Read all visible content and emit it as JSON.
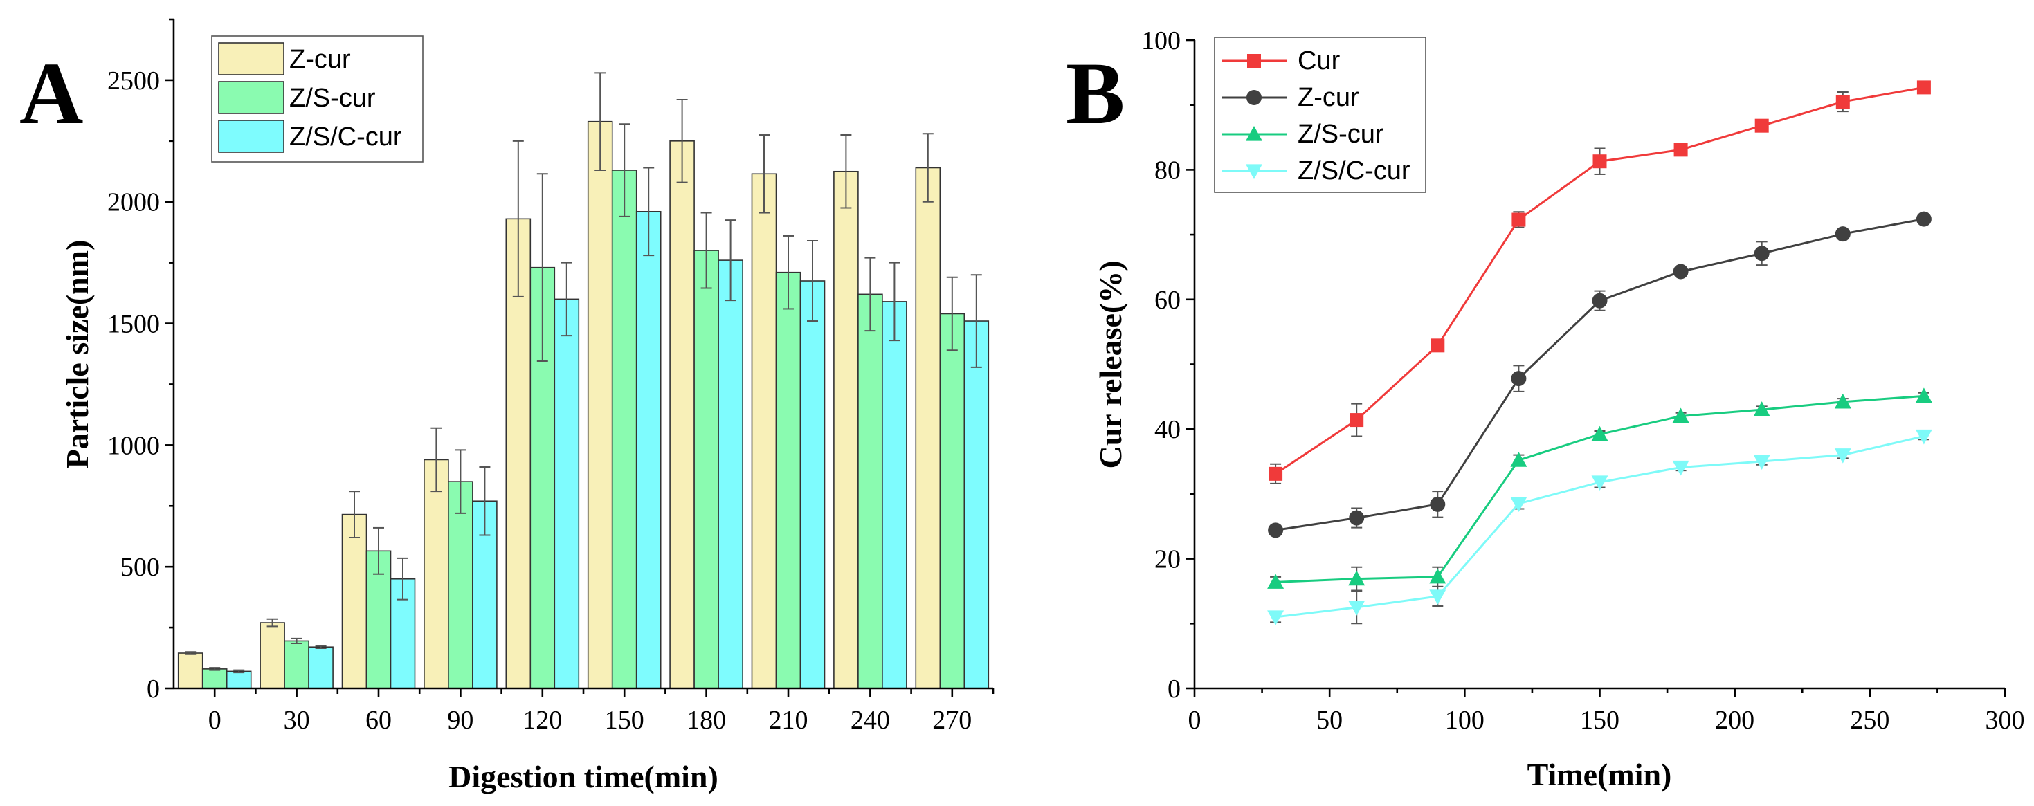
{
  "chart_data": [
    {
      "panel": "A",
      "type": "bar",
      "xlabel": "Digestion time(min)",
      "ylabel": "Particle size(nm)",
      "categories": [
        "0",
        "30",
        "60",
        "90",
        "120",
        "150",
        "180",
        "210",
        "240",
        "270"
      ],
      "ylim": [
        0,
        2750
      ],
      "yticks": [
        "0",
        "500",
        "1000",
        "1500",
        "2000",
        "2500"
      ],
      "legend_position": "top-left",
      "series": [
        {
          "name": "Z-cur",
          "color": "#F8F0B8",
          "values": [
            145,
            270,
            715,
            940,
            1930,
            2330,
            2250,
            2115,
            2125,
            2140
          ],
          "errors": [
            5,
            15,
            95,
            130,
            320,
            200,
            170,
            160,
            150,
            140
          ]
        },
        {
          "name": "Z/S-cur",
          "color": "#8AFBB0",
          "values": [
            80,
            195,
            565,
            850,
            1730,
            2130,
            1800,
            1710,
            1620,
            1540
          ],
          "errors": [
            5,
            10,
            95,
            130,
            385,
            190,
            155,
            150,
            150,
            150
          ]
        },
        {
          "name": "Z/S/C-cur",
          "color": "#7EFCFE",
          "values": [
            70,
            170,
            450,
            770,
            1600,
            1960,
            1760,
            1675,
            1590,
            1510
          ],
          "errors": [
            5,
            5,
            85,
            140,
            150,
            180,
            165,
            165,
            160,
            190
          ]
        }
      ]
    },
    {
      "panel": "B",
      "type": "line",
      "xlabel": "Time(min)",
      "ylabel": "Cur release(%)",
      "xlim": [
        0,
        300
      ],
      "ylim": [
        0,
        100
      ],
      "xticks": [
        "0",
        "50",
        "100",
        "150",
        "200",
        "250",
        "300"
      ],
      "yticks": [
        "0",
        "20",
        "40",
        "60",
        "80",
        "100"
      ],
      "x": [
        30,
        60,
        90,
        120,
        150,
        180,
        210,
        240,
        270
      ],
      "legend_position": "top-left",
      "series": [
        {
          "name": "Cur",
          "color": "#F03A3A",
          "marker": "square",
          "values": [
            33.1,
            41.4,
            52.9,
            72.3,
            81.3,
            83.1,
            86.8,
            90.5,
            92.7
          ],
          "errors": [
            1.5,
            2.5,
            0.8,
            1.2,
            2.0,
            0.8,
            0.5,
            1.5,
            0.5
          ]
        },
        {
          "name": "Z-cur",
          "color": "#404040",
          "marker": "circle",
          "values": [
            24.4,
            26.3,
            28.4,
            47.8,
            59.8,
            64.3,
            67.1,
            70.1,
            72.4
          ],
          "errors": [
            0.6,
            1.5,
            2.0,
            2.0,
            1.5,
            0.6,
            1.8,
            0.5,
            0.5
          ]
        },
        {
          "name": "Z/S-cur",
          "color": "#18CC80",
          "marker": "triangle-up",
          "values": [
            16.4,
            16.9,
            17.2,
            35.2,
            39.2,
            42.0,
            43.0,
            44.2,
            45.1
          ],
          "errors": [
            0.8,
            1.8,
            1.5,
            0.8,
            0.5,
            0.5,
            0.5,
            0.5,
            0.5
          ]
        },
        {
          "name": "Z/S/C-cur",
          "color": "#7EFAF8",
          "marker": "triangle-down",
          "values": [
            11.0,
            12.5,
            14.2,
            28.5,
            31.8,
            34.1,
            35.0,
            36.0,
            38.9
          ],
          "errors": [
            0.8,
            2.5,
            1.5,
            0.8,
            0.8,
            0.5,
            0.5,
            0.5,
            0.5
          ]
        }
      ]
    }
  ],
  "panels": {
    "a": {
      "letter": "A"
    },
    "b": {
      "letter": "B"
    }
  }
}
